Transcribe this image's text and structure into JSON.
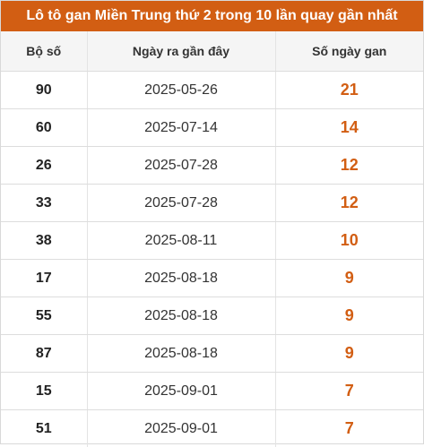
{
  "title": "Lô tô gan Miền Trung thứ 2 trong 10 lần quay gần nhất",
  "columns": [
    "Bộ số",
    "Ngày ra gần đây",
    "Số ngày gan"
  ],
  "accent_color": "#d25e13",
  "rows": [
    {
      "number": "90",
      "date": "2025-05-26",
      "days": "21"
    },
    {
      "number": "60",
      "date": "2025-07-14",
      "days": "14"
    },
    {
      "number": "26",
      "date": "2025-07-28",
      "days": "12"
    },
    {
      "number": "33",
      "date": "2025-07-28",
      "days": "12"
    },
    {
      "number": "38",
      "date": "2025-08-11",
      "days": "10"
    },
    {
      "number": "17",
      "date": "2025-08-18",
      "days": "9"
    },
    {
      "number": "55",
      "date": "2025-08-18",
      "days": "9"
    },
    {
      "number": "87",
      "date": "2025-08-18",
      "days": "9"
    },
    {
      "number": "15",
      "date": "2025-09-01",
      "days": "7"
    },
    {
      "number": "51",
      "date": "2025-09-01",
      "days": "7"
    }
  ]
}
